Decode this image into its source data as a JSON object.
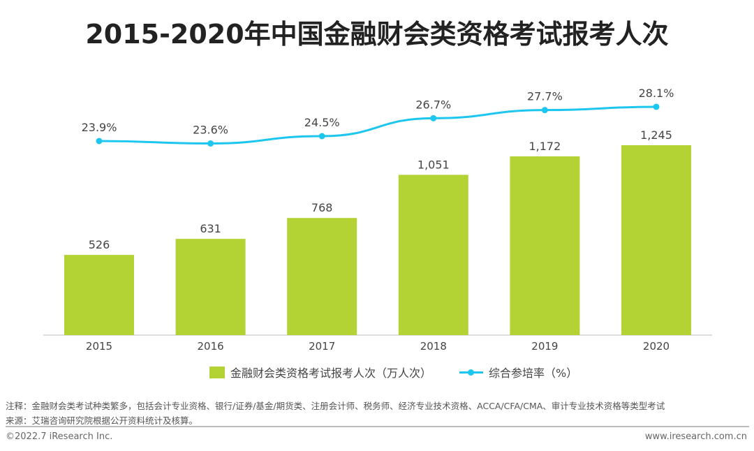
{
  "title": "2015-2020年中国金融财会类资格考试报考人次",
  "chart_data": {
    "type": "bar+line",
    "categories": [
      "2015",
      "2016",
      "2017",
      "2018",
      "2019",
      "2020"
    ],
    "series": [
      {
        "name": "金融财会类资格考试报考人次（万人次）",
        "type": "bar",
        "values": [
          526,
          631,
          768,
          1051,
          1172,
          1245
        ],
        "labels": [
          "526",
          "631",
          "768",
          "1,051",
          "1,172",
          "1,245"
        ],
        "color": "#b3d234"
      },
      {
        "name": "综合参培率（%）",
        "type": "line",
        "values": [
          23.9,
          23.6,
          24.5,
          26.7,
          27.7,
          28.1
        ],
        "labels": [
          "23.9%",
          "23.6%",
          "24.5%",
          "26.7%",
          "27.7%",
          "28.1%"
        ],
        "color": "#1cc6ef"
      }
    ],
    "legend": "bottom",
    "grid": false
  },
  "notes": {
    "note": "注释：金融财会类考试种类繁多，包括会计专业资格、银行/证券/基金/期货类、注册会计师、税务师、经济专业技术资格、ACCA/CFA/CMA、审计专业技术资格等类型考试",
    "source": "来源：艾瑞咨询研究院根据公开资料统计及核算。"
  },
  "footer": {
    "copyright": "©2022.7 iResearch Inc.",
    "website": "www.iresearch.com.cn"
  }
}
